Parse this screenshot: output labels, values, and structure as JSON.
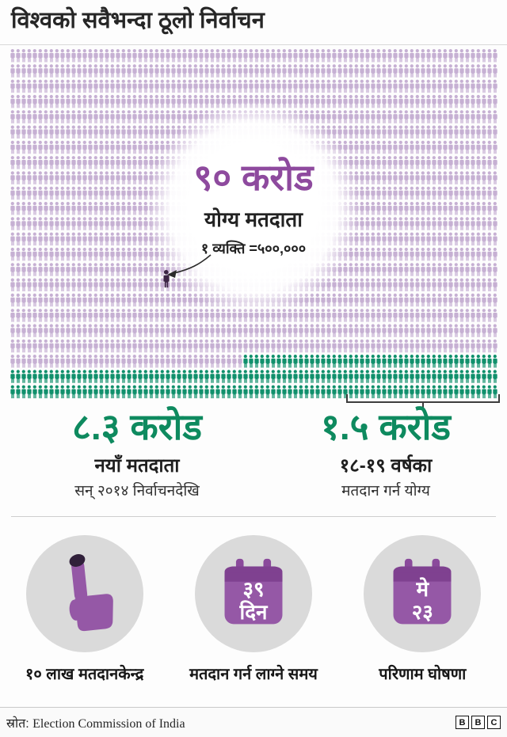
{
  "page": {
    "title": "विश्वको सवैभन्दा ठूलो निर्वाचन"
  },
  "center_badge": {
    "value": "९० करोड",
    "label": "योग्य मतदाता",
    "legend": "१ व्यक्ति =५००,०००"
  },
  "stats": [
    {
      "value": "८.३ करोड",
      "label": "नयाँ मतदाता",
      "sublabel": "सन् २०१४ निर्वाचनदेखि"
    },
    {
      "value": "१.५ करोड",
      "label": "१८-१९ वर्षका",
      "sublabel": "मतदान गर्न योग्य"
    }
  ],
  "facts": [
    {
      "icon": "inked-finger-icon",
      "label": "१० लाख मतदानकेन्द्र"
    },
    {
      "icon": "calendar-icon",
      "calendar": {
        "line1": "३९",
        "line2": "दिन"
      },
      "label": "मतदान गर्न लाग्ने समय"
    },
    {
      "icon": "calendar-icon",
      "calendar": {
        "line1": "मे",
        "line2": "२३"
      },
      "label": "परिणाम घोषणा"
    }
  ],
  "footer": {
    "source_label": "स्रोत:",
    "source_text": "Election Commission of India",
    "logo_letters": [
      "B",
      "B",
      "C"
    ]
  },
  "colors": {
    "person_purple": "#c6b0d3",
    "person_green": "#10906c",
    "sample_person_dark": "#3c2545",
    "value_purple": "#8e4a9e",
    "value_green": "#0e8a5f",
    "calendar_purple": "#9558a6",
    "calendar_band": "#7f4190",
    "ink_dark": "#30203a",
    "circle_gray": "#dadada"
  },
  "pictogram": {
    "rows": 23,
    "cols": 88,
    "green_start_row": 20,
    "green_start_col": 42
  },
  "chart_data": {
    "type": "pictogram",
    "title": "विश्वको सवैभन्दा ठूलो निर्वाचन",
    "unit": {
      "label": "१ व्यक्ति =५००,०००",
      "people_per_icon": 500000
    },
    "series": [
      {
        "name": "योग्य मतदाता",
        "value_label": "९० करोड",
        "value": 900000000,
        "color": "#c6b0d3"
      },
      {
        "name": "नयाँ मतदाता (सन् २०१४ निर्वाचनदेखि)",
        "value_label": "८.३ करोड",
        "value": 83000000,
        "color": "#10906c"
      },
      {
        "name": "१८-१९ वर्षका मतदान गर्न योग्य",
        "value_label": "१.५ करोड",
        "value": 15000000,
        "color": "#10906c"
      }
    ],
    "facts": [
      {
        "value": "१० लाख",
        "label": "मतदानकेन्द्र"
      },
      {
        "value": "३९ दिन",
        "label": "मतदान गर्न लाग्ने समय"
      },
      {
        "value": "मे २३",
        "label": "परिणाम घोषणा"
      }
    ],
    "source": "Election Commission of India",
    "legend_position": "center-overlay",
    "grid": false
  }
}
